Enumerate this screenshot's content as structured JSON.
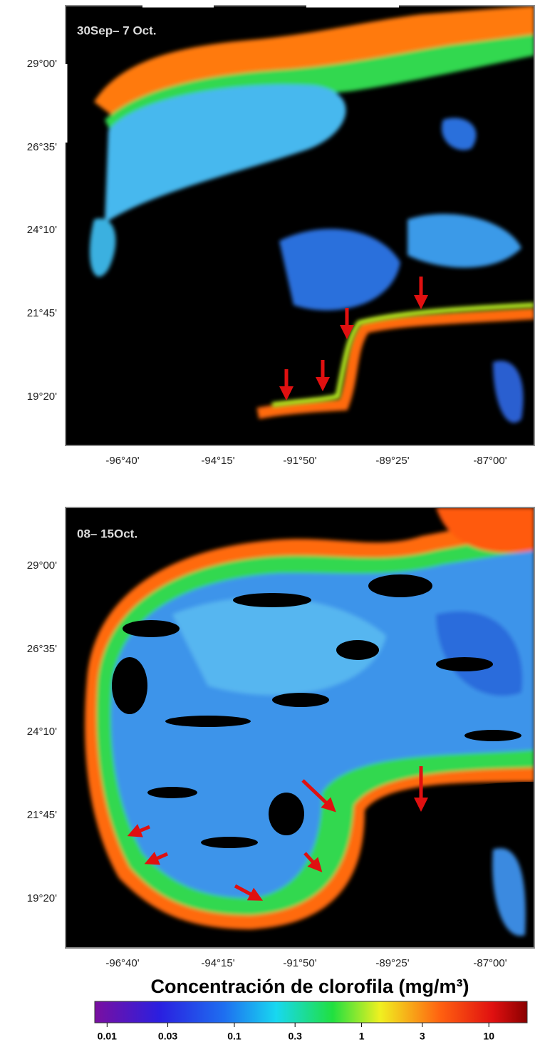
{
  "panels": [
    {
      "label": "30Sep– 7 Oct."
    },
    {
      "label": "08– 15Oct."
    }
  ],
  "latitude_labels": [
    "29°00'",
    "26°35'",
    "24°10'",
    "21°45'",
    "19°20'"
  ],
  "longitude_labels": [
    "-96°40'",
    "-94°15'",
    "-91°50'",
    "-89°25'",
    "-87°00'"
  ],
  "colorbar": {
    "title": "Concentración de clorofila (mg/m³)",
    "scale": "log",
    "range": [
      0.008,
      20
    ],
    "ticks": [
      0.01,
      0.03,
      0.1,
      0.3,
      1,
      3,
      10
    ]
  }
}
